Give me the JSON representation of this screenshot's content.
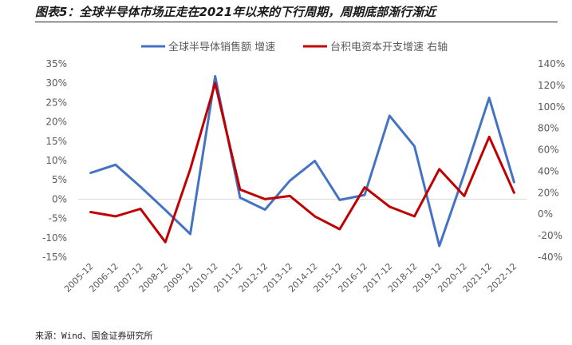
{
  "title": "图表5：全球半导体市场正走在2021年以来的下行周期，周期底部渐行渐近",
  "source": "来源：Wind、国金证券研究所",
  "chart_data": {
    "type": "line",
    "categories": [
      "2005-12",
      "2006-12",
      "2007-12",
      "2008-12",
      "2009-12",
      "2010-12",
      "2011-12",
      "2012-12",
      "2013-12",
      "2014-12",
      "2015-12",
      "2016-12",
      "2017-12",
      "2018-12",
      "2019-12",
      "2020-12",
      "2021-12",
      "2022-12"
    ],
    "series": [
      {
        "name": "全球半导体销售额 增速",
        "axis": "left",
        "color": "#4472C4",
        "values": [
          6.8,
          8.9,
          3.2,
          -2.8,
          -9.0,
          31.8,
          0.4,
          -2.7,
          4.8,
          9.9,
          -0.2,
          1.1,
          21.6,
          13.7,
          -12.1,
          6.5,
          26.2,
          4.4
        ]
      },
      {
        "name": "台积电资本开支增速 右轴",
        "axis": "right",
        "color": "#C00000",
        "values": [
          2,
          -2,
          5,
          -26,
          42,
          122,
          23,
          14,
          17,
          -2,
          -14,
          25,
          7,
          -2,
          42,
          17,
          72,
          20
        ]
      }
    ],
    "y_left": {
      "min": -15,
      "max": 35,
      "step": 5,
      "ticks": [
        "35%",
        "30%",
        "25%",
        "20%",
        "15%",
        "10%",
        "5%",
        "0%",
        "-5%",
        "-10%",
        "-15%"
      ]
    },
    "y_right": {
      "min": -40,
      "max": 140,
      "step": 20,
      "ticks": [
        "140%",
        "120%",
        "100%",
        "80%",
        "60%",
        "40%",
        "20%",
        "0%",
        "-20%",
        "-40%"
      ]
    },
    "legend_position": "top",
    "grid": false
  }
}
